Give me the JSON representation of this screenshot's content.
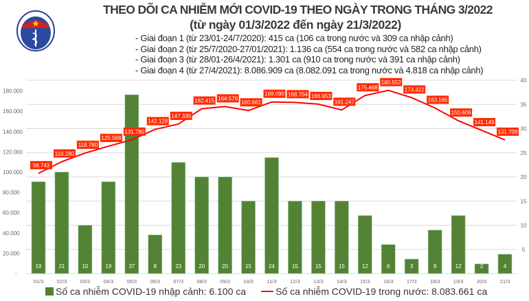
{
  "header": {
    "title": "THEO DÕI CA NHIỄM MỚI COVID-19 THEO NGÀY TRONG THÁNG 3/2022",
    "subtitle": "(từ ngày 01/3/2022 đến ngày 21/3/2022)",
    "notes": [
      "- Giai đoạn 1 (từ 23/01-24/7/2020): 415 ca (106 ca trong nước và 309 ca nhập cảnh)",
      "- Giai đoạn 2 (từ 25/7/2020-27/01/2021): 1.136 ca (554 ca trong nước và 582 ca nhập cảnh)",
      "- Giai đoạn 3 (từ 28/01-26/4/2021): 1.301 ca (910 ca trong nước và 391 ca nhập cảnh)",
      "- Giai đoạn 4 (từ 27/4/2021): 8.086.909 ca (8.082.091 ca trong nước và 4.818 ca nhập cảnh)"
    ],
    "logo_text": "BỘ Y TẾ · MINISTRY OF HEALTH"
  },
  "chart_data": {
    "type": "bar+line",
    "categories": [
      "01/3",
      "02/3",
      "03/3",
      "04/3",
      "05/3",
      "06/3",
      "07/3",
      "08/3",
      "09/3",
      "10/3",
      "11/3",
      "12/3",
      "13/3",
      "14/3",
      "15/3",
      "16/3",
      "17/3",
      "18/3",
      "19/3",
      "20/3",
      "21/3"
    ],
    "series": [
      {
        "name": "Số ca nhiễm COVID-19 nhập cảnh: 6.100 ca",
        "type": "bar",
        "axis": "right",
        "color": "#548235",
        "values": [
          19,
          21,
          10,
          19,
          37,
          8,
          23,
          20,
          20,
          15,
          24,
          15,
          15,
          15,
          12,
          6,
          3,
          9,
          12,
          2,
          4
        ]
      },
      {
        "name": "Số ca nhiễm COVID-19 trong nước: 8.083.661 ca",
        "type": "line",
        "axis": "left",
        "color": "#ff0000",
        "values": [
          98743,
          110280,
          118780,
          125568,
          131780,
          142128,
          147335,
          162415,
          164576,
          160661,
          169090,
          168704,
          166953,
          161247,
          175468,
          180552,
          173322,
          163165,
          150606,
          141149,
          131709
        ],
        "labels": [
          "98.743",
          "110.280",
          "118.780",
          "125.568",
          "131.780",
          "142.128",
          "147.335",
          "162.415",
          "164.576",
          "160.661",
          "169.090",
          "168.704",
          "166.953",
          "161.247",
          "175.468",
          "180.552",
          "173.322",
          "163.165",
          "150.606",
          "141.149",
          "131.709"
        ]
      }
    ],
    "left_axis": {
      "ticks": [
        "-",
        "20.000",
        "40.000",
        "60.000",
        "80.000",
        "100.000",
        "120.000",
        "140.000",
        "160.000",
        "180.000"
      ],
      "range": [
        0,
        190000
      ]
    },
    "right_axis": {
      "ticks": [
        "-",
        "5",
        "10",
        "15",
        "20",
        "25",
        "30",
        "35",
        "40"
      ],
      "range": [
        0,
        40
      ]
    },
    "grid": true,
    "legend_position": "bottom"
  }
}
